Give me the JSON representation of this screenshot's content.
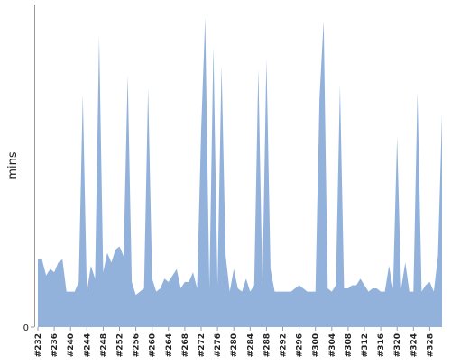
{
  "chart_data": {
    "type": "area",
    "y_label": "mins",
    "color": "#92b2dc",
    "categories": [
      "#232",
      null,
      null,
      null,
      "#236",
      null,
      null,
      null,
      "#240",
      null,
      null,
      null,
      "#244",
      null,
      null,
      null,
      "#248",
      null,
      null,
      null,
      "#252",
      null,
      null,
      null,
      "#256",
      null,
      null,
      null,
      "#260",
      null,
      null,
      null,
      "#264",
      null,
      null,
      null,
      "#268",
      null,
      null,
      null,
      "#272",
      null,
      null,
      null,
      "#276",
      null,
      null,
      null,
      "#280",
      null,
      null,
      null,
      "#284",
      null,
      null,
      null,
      "#288",
      null,
      null,
      null,
      "#292",
      null,
      null,
      null,
      "#296",
      null,
      null,
      null,
      "#300",
      null,
      null,
      null,
      "#304",
      null,
      null,
      null,
      "#308",
      null,
      null,
      null,
      "#312",
      null,
      null,
      null,
      "#316",
      null,
      null,
      null,
      "#320",
      null,
      null,
      null,
      "#324",
      null,
      null,
      null,
      "#328",
      null,
      null,
      null
    ],
    "values": [
      21,
      21,
      16,
      18,
      17,
      20,
      21,
      11,
      11,
      11,
      14,
      72,
      11,
      19,
      15,
      90,
      17,
      23,
      20,
      24,
      25,
      22,
      78,
      14,
      10,
      11,
      12,
      74,
      15,
      11,
      12,
      15,
      14,
      16,
      18,
      12,
      14,
      14,
      17,
      12,
      61,
      96,
      12,
      87,
      13,
      81,
      22,
      11,
      18,
      12,
      11,
      15,
      11,
      13,
      80,
      13,
      83,
      18,
      11,
      11,
      11,
      11,
      11,
      12,
      13,
      12,
      11,
      11,
      11,
      71,
      95,
      12,
      11,
      13,
      75,
      12,
      12,
      13,
      13,
      15,
      13,
      11,
      12,
      12,
      11,
      11,
      19,
      12,
      59,
      12,
      20,
      11,
      11,
      73,
      11,
      13,
      14,
      11,
      22,
      66
    ],
    "ylim": [
      0,
      100
    ],
    "yticks": [
      0
    ]
  }
}
